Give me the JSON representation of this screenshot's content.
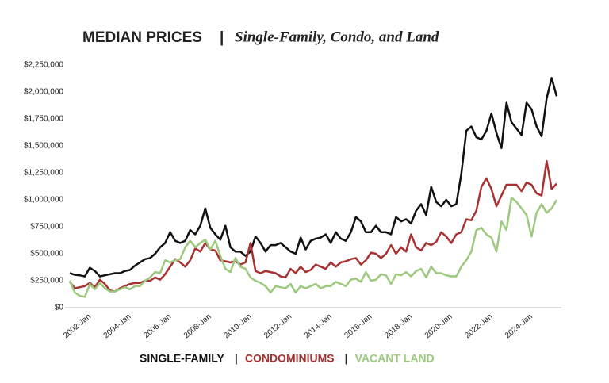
{
  "chart_data": {
    "type": "line",
    "title": "MEDIAN PRICES",
    "subtitle": "Single-Family, Condo, and Land",
    "separator": "|",
    "categories": [
      null,
      null,
      null,
      null,
      "2002-Jan",
      null,
      null,
      null,
      null,
      null,
      null,
      null,
      "2004-Jan",
      null,
      null,
      null,
      null,
      null,
      null,
      null,
      "2006-Jan",
      null,
      null,
      null,
      null,
      null,
      null,
      null,
      "2008-Jan",
      null,
      null,
      null,
      null,
      null,
      null,
      null,
      "2010-Jan",
      null,
      null,
      null,
      null,
      null,
      null,
      null,
      "2012-Jan",
      null,
      null,
      null,
      null,
      null,
      null,
      null,
      "2014-Jan",
      null,
      null,
      null,
      null,
      null,
      null,
      null,
      "2016-Jan",
      null,
      null,
      null,
      null,
      null,
      null,
      null,
      "2018-Jan",
      null,
      null,
      null,
      null,
      null,
      null,
      null,
      "2020-Jan",
      null,
      null,
      null,
      null,
      null,
      null,
      null,
      "2022-Jan",
      null,
      null,
      null,
      null,
      null,
      null,
      null,
      "2024-Jan",
      null,
      null,
      null,
      null,
      null
    ],
    "series": [
      {
        "name": "SINGLE-FAMILY",
        "color": "#111111",
        "values": [
          320000,
          305000,
          300000,
          290000,
          370000,
          340000,
          290000,
          300000,
          310000,
          320000,
          320000,
          340000,
          350000,
          390000,
          420000,
          450000,
          460000,
          500000,
          560000,
          600000,
          700000,
          620000,
          600000,
          620000,
          720000,
          680000,
          760000,
          920000,
          740000,
          680000,
          630000,
          760000,
          560000,
          520000,
          520000,
          480000,
          520000,
          660000,
          600000,
          520000,
          580000,
          580000,
          600000,
          560000,
          520000,
          500000,
          650000,
          540000,
          620000,
          640000,
          650000,
          680000,
          600000,
          700000,
          640000,
          620000,
          700000,
          840000,
          800000,
          700000,
          700000,
          760000,
          700000,
          700000,
          680000,
          840000,
          800000,
          820000,
          780000,
          900000,
          960000,
          860000,
          1120000,
          980000,
          940000,
          1000000,
          940000,
          960000,
          1240000,
          1640000,
          1680000,
          1580000,
          1560000,
          1640000,
          1800000,
          1620000,
          1480000,
          1900000,
          1720000,
          1660000,
          1600000,
          1900000,
          1840000,
          1680000,
          1590000,
          1940000,
          2130000,
          1960000
        ]
      },
      {
        "name": "CONDOMINIUMS",
        "color": "#a83232",
        "values": [
          240000,
          180000,
          190000,
          200000,
          230000,
          190000,
          260000,
          220000,
          160000,
          150000,
          180000,
          200000,
          220000,
          230000,
          230000,
          250000,
          250000,
          280000,
          260000,
          310000,
          380000,
          450000,
          420000,
          380000,
          440000,
          550000,
          520000,
          600000,
          540000,
          530000,
          440000,
          430000,
          420000,
          430000,
          400000,
          420000,
          600000,
          340000,
          320000,
          340000,
          330000,
          320000,
          290000,
          280000,
          360000,
          320000,
          380000,
          330000,
          350000,
          400000,
          380000,
          360000,
          420000,
          380000,
          420000,
          430000,
          450000,
          460000,
          400000,
          440000,
          510000,
          500000,
          460000,
          500000,
          580000,
          500000,
          560000,
          520000,
          680000,
          560000,
          530000,
          600000,
          580000,
          610000,
          700000,
          660000,
          600000,
          680000,
          700000,
          820000,
          810000,
          900000,
          1120000,
          1200000,
          1100000,
          940000,
          1040000,
          1140000,
          1140000,
          1140000,
          1080000,
          1160000,
          1140000,
          1060000,
          1040000,
          1360000,
          1100000,
          1150000
        ]
      },
      {
        "name": "VACANT LAND",
        "color": "#9cc97e",
        "values": [
          250000,
          140000,
          110000,
          100000,
          220000,
          170000,
          230000,
          180000,
          150000,
          150000,
          170000,
          190000,
          170000,
          200000,
          200000,
          250000,
          280000,
          330000,
          320000,
          440000,
          420000,
          440000,
          450000,
          560000,
          620000,
          560000,
          600000,
          630000,
          540000,
          620000,
          480000,
          360000,
          330000,
          460000,
          380000,
          360000,
          280000,
          250000,
          230000,
          200000,
          140000,
          200000,
          190000,
          180000,
          220000,
          140000,
          200000,
          180000,
          200000,
          220000,
          180000,
          200000,
          200000,
          240000,
          220000,
          200000,
          260000,
          270000,
          240000,
          330000,
          250000,
          260000,
          310000,
          300000,
          220000,
          310000,
          300000,
          330000,
          290000,
          340000,
          360000,
          280000,
          380000,
          320000,
          320000,
          300000,
          290000,
          290000,
          380000,
          440000,
          520000,
          720000,
          740000,
          680000,
          650000,
          520000,
          800000,
          720000,
          1020000,
          980000,
          920000,
          860000,
          660000,
          880000,
          960000,
          880000,
          920000,
          1000000
        ]
      }
    ],
    "ylim": [
      0,
      2250000
    ],
    "yticks": [
      {
        "value": 0,
        "label": "$0"
      },
      {
        "value": 250000,
        "label": "$250,000"
      },
      {
        "value": 500000,
        "label": "$500,000"
      },
      {
        "value": 750000,
        "label": "$750,000"
      },
      {
        "value": 1000000,
        "label": "$1,000,000"
      },
      {
        "value": 1250000,
        "label": "$1,250,000"
      },
      {
        "value": 1500000,
        "label": "$1,500,000"
      },
      {
        "value": 1750000,
        "label": "$1,750,000"
      },
      {
        "value": 2000000,
        "label": "$2,000,000"
      },
      {
        "value": 2250000,
        "label": "$2,250,000"
      }
    ],
    "grid": false
  }
}
